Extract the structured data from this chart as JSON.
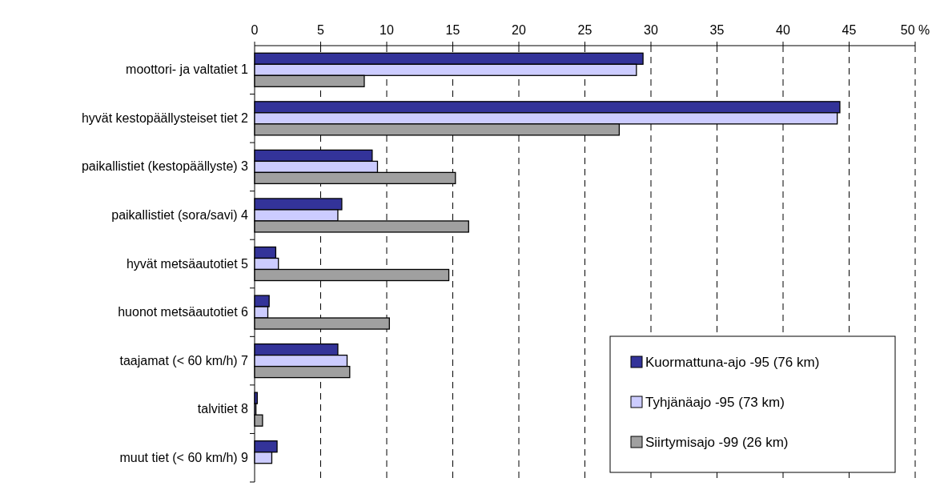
{
  "chart_data": {
    "type": "bar",
    "orientation": "horizontal",
    "categories": [
      "moottori- ja valtatiet 1",
      "hyvät kestopäällysteiset tiet 2",
      "paikallistiet (kestopäällyste) 3",
      "paikallistiet (sora/savi) 4",
      "hyvät metsäautotiet 5",
      "huonot metsäautotiet 6",
      "taajamat (< 60 km/h) 7",
      "talvitiet 8",
      "muut tiet (< 60 km/h) 9"
    ],
    "series": [
      {
        "name": "Kuormattuna-ajo -95 (76 km)",
        "color": "#333399",
        "values": [
          29.4,
          44.3,
          8.9,
          6.6,
          1.6,
          1.1,
          6.3,
          0.2,
          1.7
        ]
      },
      {
        "name": "Tyhjänäajo -95 (73 km)",
        "color": "#ccccff",
        "values": [
          28.9,
          44.1,
          9.3,
          6.3,
          1.8,
          1.0,
          7.0,
          0.1,
          1.3
        ]
      },
      {
        "name": "Siirtymisajo -99 (26 km)",
        "color": "#a0a0a0",
        "values": [
          8.3,
          27.6,
          15.2,
          16.2,
          14.7,
          10.2,
          7.2,
          0.6,
          null
        ]
      }
    ],
    "xlim": [
      0,
      50
    ],
    "xticks": [
      0,
      5,
      10,
      15,
      20,
      25,
      30,
      35,
      40,
      45,
      {
        "value": 50,
        "label": "50 %"
      }
    ],
    "grid": "x",
    "legend": "bottom right"
  }
}
